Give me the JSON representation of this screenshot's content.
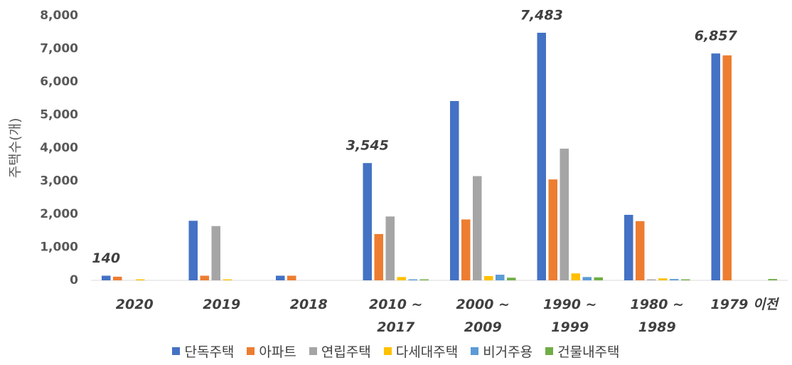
{
  "chart_data": {
    "type": "bar",
    "y_label": "주택수(개)",
    "categories": [
      "2020",
      "2019",
      "2018",
      "2010 ~\n2017",
      "2000 ~\n2009",
      "1990 ~\n1999",
      "1980 ~\n1989",
      "1979 이전"
    ],
    "series": [
      {
        "name": "단독주택",
        "color": "#4472c4",
        "values": [
          140,
          1800,
          140,
          3545,
          5420,
          7483,
          1980,
          6857
        ],
        "value_labels": [
          "140",
          null,
          null,
          "3,545",
          null,
          "7,483",
          null,
          "6,857"
        ]
      },
      {
        "name": "아파트",
        "color": "#ed7d31",
        "values": [
          110,
          140,
          140,
          1400,
          1840,
          3050,
          1790,
          6800
        ]
      },
      {
        "name": "연립주택",
        "color": "#a5a5a5",
        "values": [
          0,
          1640,
          0,
          1930,
          3150,
          3980,
          30,
          0
        ]
      },
      {
        "name": "다세대주택",
        "color": "#ffc000",
        "values": [
          30,
          30,
          0,
          100,
          130,
          210,
          60,
          0
        ]
      },
      {
        "name": "비거주용",
        "color": "#5b9bd5",
        "values": [
          0,
          0,
          0,
          30,
          170,
          100,
          40,
          0
        ]
      },
      {
        "name": "건물내주택",
        "color": "#70ad47",
        "values": [
          0,
          0,
          0,
          30,
          80,
          90,
          30,
          40
        ]
      }
    ],
    "ylim": [
      0,
      8000
    ],
    "yticks": [
      0,
      {
        "value": 1000,
        "label": "1,000"
      },
      {
        "value": 2000,
        "label": "2,000"
      },
      {
        "value": 3000,
        "label": "3,000"
      },
      {
        "value": 4000,
        "label": "4,000"
      },
      {
        "value": 5000,
        "label": "5,000"
      },
      {
        "value": 6000,
        "label": "6,000"
      },
      {
        "value": 7000,
        "label": "7,000"
      },
      {
        "value": 8000,
        "label": "8,000"
      }
    ],
    "grid": false,
    "legend": "bottom"
  }
}
